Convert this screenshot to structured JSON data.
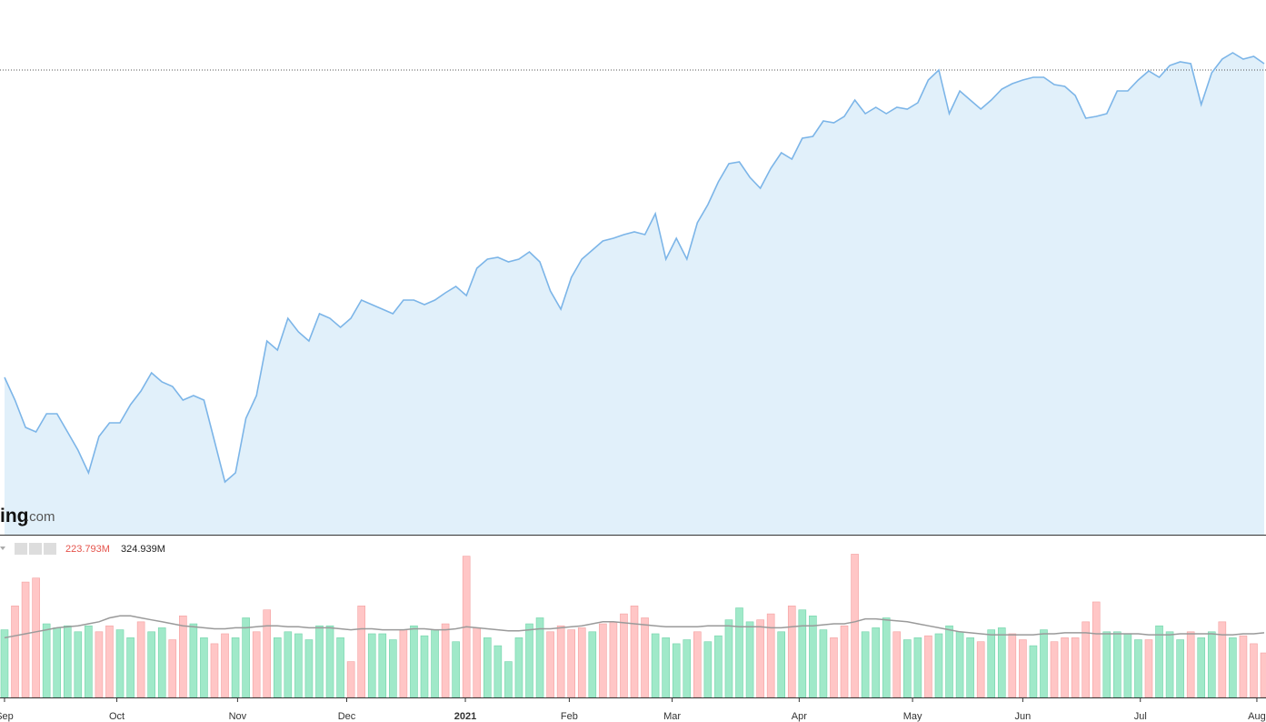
{
  "chart_data": [
    {
      "type": "area",
      "values": [
        173,
        148,
        118,
        113,
        133,
        133,
        113,
        93,
        68,
        108,
        123,
        123,
        143,
        158,
        178,
        168,
        163,
        148,
        153,
        148,
        103,
        58,
        68,
        128,
        153,
        213,
        203,
        238,
        223,
        213,
        243,
        238,
        228,
        238,
        258,
        253,
        248,
        243,
        258,
        258,
        253,
        258,
        266,
        273,
        263,
        293,
        303,
        305,
        300,
        303,
        311,
        300,
        268,
        248,
        283,
        303,
        313,
        323,
        326,
        330,
        333,
        330,
        353,
        303,
        326,
        303,
        343,
        363,
        388,
        408,
        410,
        393,
        381,
        403,
        420,
        413,
        436,
        438,
        455,
        453,
        460,
        478,
        463,
        470,
        463,
        470,
        468,
        475,
        500,
        511,
        463,
        488,
        478,
        468,
        478,
        490,
        496,
        500,
        503,
        503,
        495,
        493,
        483,
        458,
        460,
        463,
        488,
        488,
        500,
        510,
        503,
        516,
        520,
        518,
        473,
        508,
        523,
        530,
        523,
        526,
        518
      ],
      "color": "#7cb5e8",
      "fill": "#e1f0fa",
      "xlim": [
        -0.43,
        120.17
      ],
      "ylim": [
        0,
        588
      ],
      "reference_line": 511,
      "logo": {
        "name": "ing",
        "suffix": ".com"
      }
    },
    {
      "type": "bar",
      "values": [
        340,
        460,
        580,
        600,
        370,
        350,
        360,
        330,
        360,
        330,
        360,
        340,
        300,
        380,
        330,
        350,
        290,
        410,
        370,
        300,
        270,
        320,
        300,
        400,
        330,
        440,
        300,
        330,
        320,
        290,
        360,
        360,
        300,
        180,
        460,
        320,
        320,
        290,
        340,
        360,
        310,
        340,
        370,
        280,
        710,
        350,
        300,
        260,
        180,
        300,
        370,
        400,
        330,
        360,
        340,
        350,
        330,
        370,
        380,
        420,
        460,
        400,
        320,
        300,
        270,
        290,
        330,
        280,
        310,
        390,
        450,
        380,
        390,
        420,
        330,
        460,
        440,
        410,
        340,
        300,
        360,
        720,
        330,
        350,
        400,
        330,
        290,
        300,
        310,
        320,
        360,
        330,
        300,
        280,
        340,
        350,
        320,
        290,
        260,
        340,
        280,
        300,
        300,
        380,
        480,
        330,
        330,
        320,
        290,
        290,
        360,
        330,
        290,
        330,
        300,
        330,
        380,
        300,
        310,
        270,
        223.793
      ],
      "rising": [
        1,
        0,
        0,
        0,
        1,
        1,
        1,
        1,
        1,
        0,
        0,
        1,
        1,
        0,
        1,
        1,
        0,
        0,
        1,
        1,
        0,
        0,
        1,
        1,
        0,
        0,
        1,
        1,
        1,
        1,
        1,
        1,
        1,
        0,
        0,
        1,
        1,
        1,
        0,
        1,
        1,
        1,
        0,
        1,
        0,
        0,
        1,
        1,
        1,
        1,
        1,
        1,
        0,
        0,
        0,
        0,
        1,
        0,
        0,
        0,
        0,
        0,
        1,
        1,
        1,
        1,
        0,
        1,
        1,
        1,
        1,
        1,
        0,
        0,
        1,
        0,
        1,
        1,
        1,
        0,
        0,
        0,
        1,
        1,
        1,
        0,
        1,
        1,
        0,
        1,
        1,
        1,
        1,
        0,
        1,
        1,
        0,
        0,
        1,
        1,
        0,
        0,
        0,
        0,
        0,
        1,
        1,
        1,
        1,
        0,
        1,
        1,
        1,
        0,
        1,
        1,
        0,
        1,
        0,
        0,
        0
      ],
      "up_color": "#a0e9c9",
      "down_color": "#ffc6c6",
      "last_value_label": "223.793M",
      "moving_average": {
        "values": [
          300,
          310,
          320,
          330,
          340,
          350,
          355,
          360,
          370,
          380,
          400,
          410,
          410,
          400,
          390,
          380,
          370,
          360,
          355,
          350,
          345,
          345,
          350,
          350,
          355,
          360,
          360,
          355,
          355,
          350,
          350,
          350,
          345,
          340,
          345,
          345,
          340,
          340,
          340,
          345,
          345,
          340,
          340,
          345,
          355,
          350,
          345,
          340,
          335,
          335,
          340,
          345,
          345,
          350,
          355,
          360,
          370,
          380,
          380,
          375,
          370,
          365,
          360,
          355,
          355,
          355,
          355,
          360,
          360,
          360,
          355,
          355,
          355,
          350,
          350,
          355,
          360,
          360,
          365,
          370,
          370,
          380,
          395,
          395,
          390,
          385,
          380,
          370,
          360,
          350,
          340,
          330,
          325,
          320,
          315,
          315,
          315,
          315,
          315,
          320,
          320,
          325,
          325,
          325,
          320,
          320,
          320,
          320,
          320,
          315,
          315,
          315,
          320,
          320,
          320,
          320,
          315,
          315,
          320,
          320,
          324.939
        ],
        "color": "#9a9a9a",
        "last_value_label": "324.939M"
      },
      "xlim": [
        -0.43,
        120.17
      ],
      "ylim": [
        0,
        786
      ],
      "xticks": [
        {
          "value": 0,
          "label": "Sep"
        },
        {
          "value": 10.7,
          "label": "Oct"
        },
        {
          "value": 22.2,
          "label": "Nov"
        },
        {
          "value": 32.6,
          "label": "Dec"
        },
        {
          "value": 43.9,
          "label": "2021"
        },
        {
          "value": 53.8,
          "label": "Feb"
        },
        {
          "value": 63.6,
          "label": "Mar"
        },
        {
          "value": 75.7,
          "label": "Apr"
        },
        {
          "value": 86.5,
          "label": "May"
        },
        {
          "value": 97,
          "label": "Jun"
        },
        {
          "value": 108.2,
          "label": "Jul"
        },
        {
          "value": 119.3,
          "label": "Aug"
        }
      ]
    }
  ]
}
